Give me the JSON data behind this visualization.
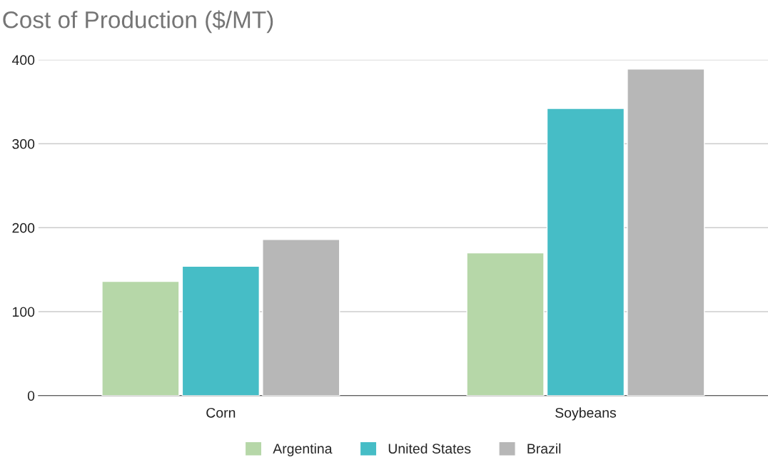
{
  "chart_data": {
    "type": "bar",
    "title": "Cost of Production ($/MT)",
    "categories": [
      "Corn",
      "Soybeans"
    ],
    "series": [
      {
        "name": "Argentina",
        "color": "#b6d7a8",
        "values": [
          136,
          170
        ]
      },
      {
        "name": "United States",
        "color": "#46bdc6",
        "values": [
          154,
          342
        ]
      },
      {
        "name": "Brazil",
        "color": "#b7b7b7",
        "values": [
          186,
          389
        ]
      }
    ],
    "ylim": [
      0,
      400
    ],
    "yticks": [
      0,
      100,
      200,
      300,
      400
    ],
    "grid": "y",
    "legend": "bottom"
  }
}
